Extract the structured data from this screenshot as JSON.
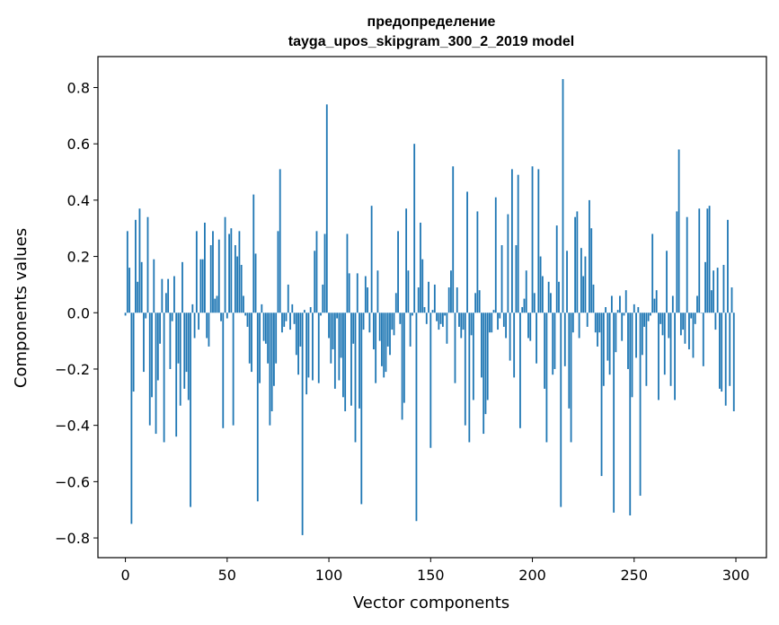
{
  "chart_data": {
    "type": "bar",
    "title": "предопределение",
    "subtitle": "tayga_upos_skipgram_300_2_2019 model",
    "xlabel": "Vector components",
    "ylabel": "Components values",
    "xlim": [
      -13.5,
      315
    ],
    "ylim": [
      -0.87,
      0.91
    ],
    "xticks": [
      0,
      50,
      100,
      150,
      200,
      250,
      300
    ],
    "xtick_labels": [
      "0",
      "50",
      "100",
      "150",
      "200",
      "250",
      "300"
    ],
    "yticks": [
      -0.8,
      -0.6,
      -0.4,
      -0.2,
      0.0,
      0.2,
      0.4,
      0.6,
      0.8
    ],
    "ytick_labels": [
      "−0.8",
      "−0.6",
      "−0.4",
      "−0.2",
      "0.0",
      "0.2",
      "0.4",
      "0.6",
      "0.8"
    ],
    "grid": false,
    "bar_color": "#1f77b4",
    "x_start": 0,
    "values": [
      -0.01,
      0.29,
      0.16,
      -0.75,
      -0.28,
      0.33,
      0.11,
      0.37,
      0.18,
      -0.21,
      -0.02,
      0.34,
      -0.4,
      -0.3,
      0.19,
      -0.43,
      -0.24,
      -0.11,
      0.12,
      -0.46,
      0.07,
      0.12,
      -0.2,
      -0.03,
      0.13,
      -0.44,
      -0.18,
      -0.33,
      0.18,
      -0.27,
      -0.21,
      -0.31,
      -0.69,
      0.03,
      -0.09,
      0.29,
      -0.06,
      0.19,
      0.19,
      0.32,
      -0.09,
      -0.12,
      0.24,
      0.29,
      0.05,
      0.06,
      0.26,
      -0.03,
      -0.41,
      0.34,
      -0.02,
      0.28,
      0.3,
      -0.4,
      0.24,
      0.2,
      0.29,
      0.17,
      0.06,
      -0.01,
      -0.05,
      -0.18,
      -0.21,
      0.42,
      0.21,
      -0.67,
      -0.25,
      0.03,
      -0.1,
      -0.11,
      -0.18,
      -0.4,
      -0.35,
      -0.26,
      -0.18,
      0.29,
      0.51,
      -0.07,
      -0.05,
      -0.03,
      0.1,
      -0.06,
      0.03,
      -0.04,
      -0.15,
      -0.22,
      -0.12,
      -0.79,
      0.01,
      -0.29,
      -0.23,
      0.02,
      -0.24,
      0.22,
      0.29,
      -0.25,
      -0.01,
      0.1,
      0.28,
      0.74,
      -0.09,
      -0.18,
      -0.13,
      -0.27,
      -0.02,
      -0.24,
      -0.16,
      -0.3,
      -0.35,
      0.28,
      0.14,
      -0.33,
      -0.11,
      -0.46,
      0.14,
      -0.34,
      -0.68,
      -0.06,
      0.13,
      0.09,
      -0.07,
      0.38,
      -0.13,
      -0.25,
      0.15,
      -0.1,
      -0.19,
      -0.23,
      -0.21,
      -0.12,
      -0.15,
      -0.06,
      -0.08,
      0.07,
      0.29,
      -0.04,
      -0.38,
      -0.32,
      0.37,
      0.15,
      -0.12,
      -0.01,
      0.6,
      -0.74,
      0.09,
      0.32,
      0.19,
      0.02,
      -0.04,
      0.11,
      -0.48,
      0.01,
      0.1,
      -0.03,
      -0.06,
      -0.04,
      -0.05,
      -0.01,
      -0.11,
      0.09,
      0.15,
      0.52,
      -0.25,
      0.09,
      -0.05,
      -0.09,
      -0.06,
      -0.4,
      0.43,
      -0.46,
      -0.08,
      -0.31,
      0.07,
      0.36,
      0.08,
      -0.23,
      -0.43,
      -0.36,
      -0.31,
      -0.07,
      -0.07,
      0.01,
      0.41,
      -0.06,
      -0.02,
      0.24,
      -0.05,
      -0.09,
      0.35,
      -0.17,
      0.51,
      -0.23,
      0.24,
      0.49,
      -0.41,
      0.02,
      0.05,
      0.15,
      -0.09,
      -0.1,
      0.52,
      0.07,
      -0.18,
      0.51,
      0.2,
      0.13,
      -0.27,
      -0.46,
      0.11,
      0.07,
      -0.22,
      -0.2,
      0.31,
      0.11,
      -0.69,
      0.83,
      -0.19,
      0.22,
      -0.34,
      -0.46,
      -0.07,
      0.34,
      0.36,
      -0.09,
      0.23,
      0.13,
      0.2,
      -0.05,
      0.4,
      0.3,
      0.1,
      -0.07,
      -0.12,
      -0.07,
      -0.58,
      -0.26,
      0.02,
      -0.17,
      -0.22,
      0.06,
      -0.71,
      -0.14,
      0.01,
      0.06,
      -0.1,
      -0.01,
      0.08,
      -0.2,
      -0.72,
      -0.3,
      0.03,
      -0.16,
      0.02,
      -0.65,
      -0.15,
      -0.05,
      -0.26,
      -0.03,
      -0.01,
      0.28,
      0.05,
      0.08,
      -0.31,
      -0.04,
      -0.08,
      -0.22,
      0.22,
      -0.09,
      -0.26,
      0.06,
      -0.31,
      0.36,
      0.58,
      -0.08,
      -0.06,
      -0.11,
      0.34,
      -0.13,
      -0.02,
      -0.16,
      -0.04,
      0.06,
      0.37,
      0.0,
      -0.19,
      0.18,
      0.37,
      0.38,
      0.08,
      0.15,
      -0.06,
      0.16,
      -0.27,
      -0.28,
      0.17,
      -0.33,
      0.33,
      -0.26,
      0.09,
      -0.35
    ]
  }
}
